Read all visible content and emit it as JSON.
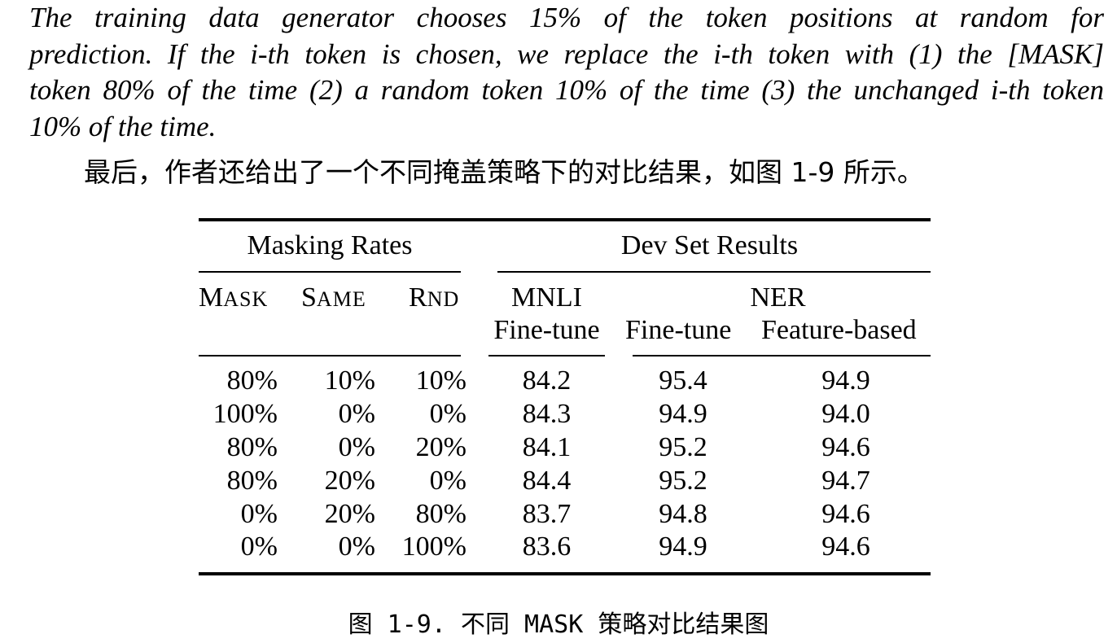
{
  "quote": {
    "lines": [
      "The training data generator chooses 15% of the token positions at random for",
      "prediction. If the i-th token is chosen, we replace the i-th token with (1) the [MASK]",
      "token 80% of the time (2) a random token 10% of the time (3) the unchanged i-th token",
      "10% of the time."
    ]
  },
  "paragraph": "最后，作者还给出了一个不同掩盖策略下的对比结果，如图 1-9 所示。",
  "table": {
    "group_headers": {
      "masking_rates": "Masking Rates",
      "dev_set_results": "Dev Set Results"
    },
    "columns": {
      "mask": {
        "first": "M",
        "rest": "ASK"
      },
      "same": {
        "first": "S",
        "rest": "AME"
      },
      "rnd": {
        "first": "R",
        "rest": "ND"
      },
      "mnli": "MNLI",
      "mnli_sub": "Fine-tune",
      "ner": "NER",
      "ner_finetune": "Fine-tune",
      "ner_feature": "Feature-based"
    },
    "rows": [
      {
        "mask": "80%",
        "same": "10%",
        "rnd": "10%",
        "mnli": "84.2",
        "ner_ft": "95.4",
        "ner_fb": "94.9"
      },
      {
        "mask": "100%",
        "same": "0%",
        "rnd": "0%",
        "mnli": "84.3",
        "ner_ft": "94.9",
        "ner_fb": "94.0"
      },
      {
        "mask": "80%",
        "same": "0%",
        "rnd": "20%",
        "mnli": "84.1",
        "ner_ft": "95.2",
        "ner_fb": "94.6"
      },
      {
        "mask": "80%",
        "same": "20%",
        "rnd": "0%",
        "mnli": "84.4",
        "ner_ft": "95.2",
        "ner_fb": "94.7"
      },
      {
        "mask": "0%",
        "same": "20%",
        "rnd": "80%",
        "mnli": "83.7",
        "ner_ft": "94.8",
        "ner_fb": "94.6"
      },
      {
        "mask": "0%",
        "same": "0%",
        "rnd": "100%",
        "mnli": "83.6",
        "ner_ft": "94.9",
        "ner_fb": "94.6"
      }
    ]
  },
  "caption": "图 1-9. 不同 MASK 策略对比结果图"
}
